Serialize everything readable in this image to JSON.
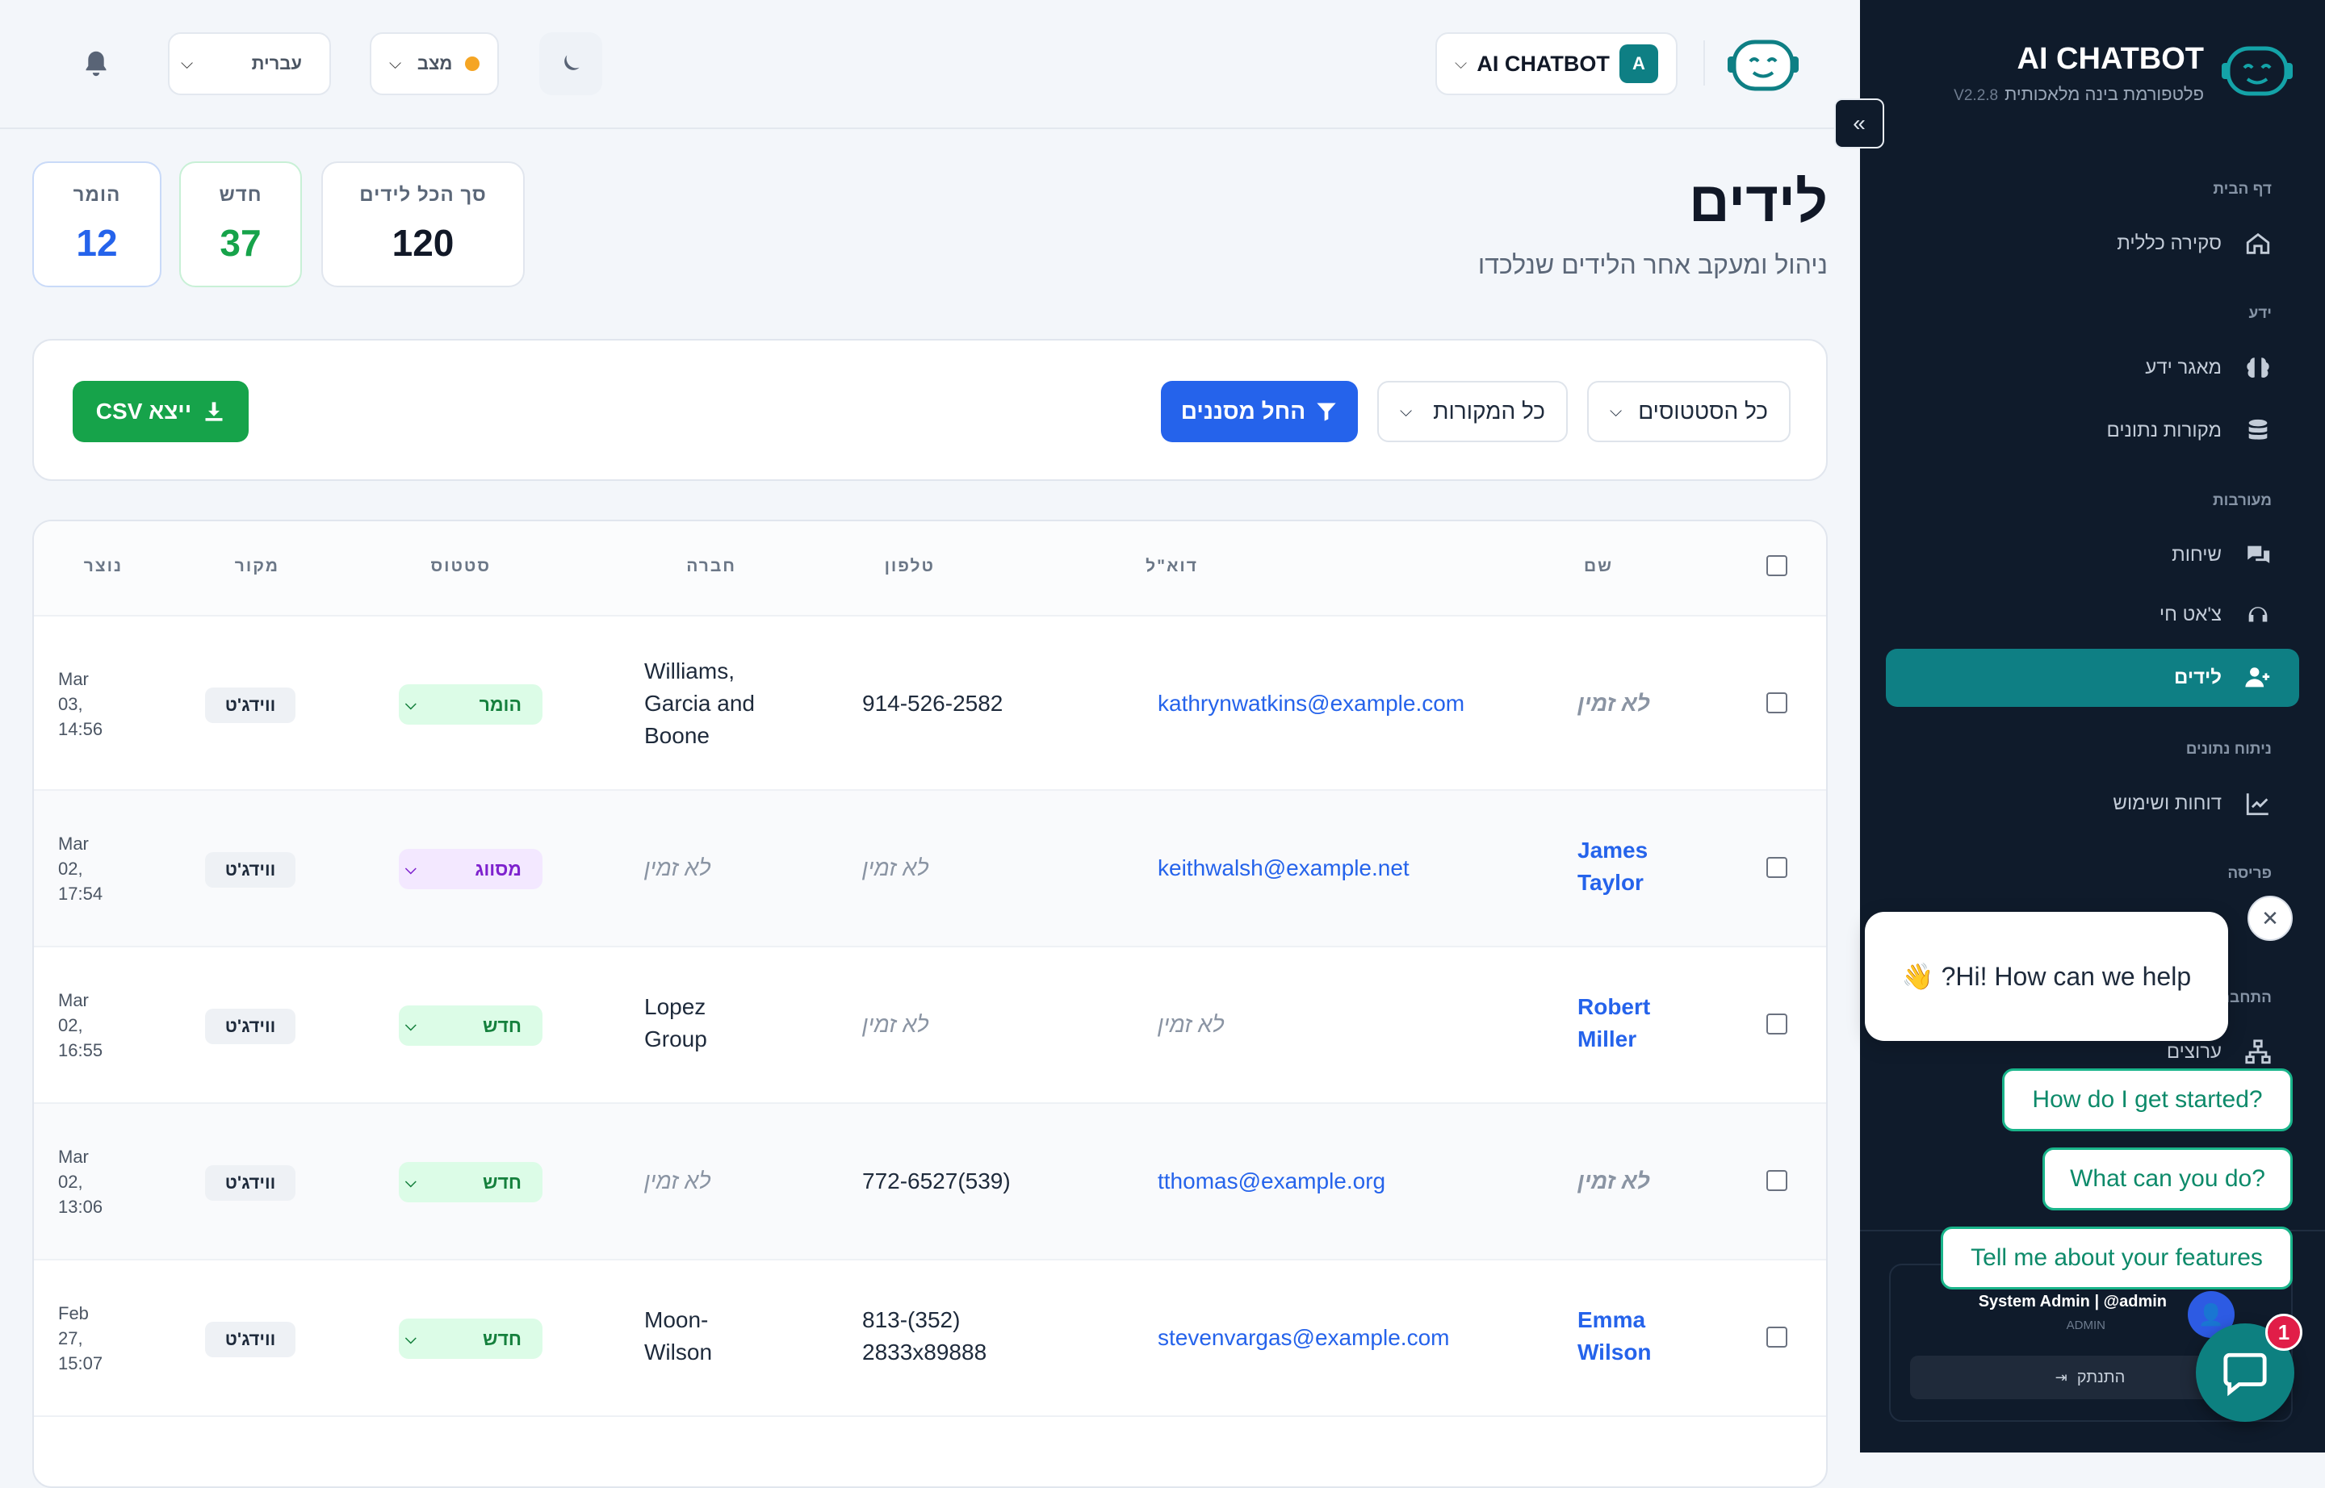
{
  "brand": {
    "title": "AI CHATBOT",
    "subtitle": "פלטפורמת בינה מלאכותית",
    "version": "V2.2.8"
  },
  "header": {
    "workspace_name": "AI CHATBOT",
    "workspace_avatar": "A",
    "status_label": "מצב",
    "status_color": "#f5a524",
    "language": "עברית"
  },
  "nav": {
    "sections": [
      {
        "label": "דף הבית"
      },
      {
        "label": "ידע"
      },
      {
        "label": "מעורבות"
      },
      {
        "label": "ניתוח נתונים"
      },
      {
        "label": "פריסה"
      },
      {
        "label": "התחבר"
      }
    ],
    "items": [
      {
        "label": "סקירה כללית",
        "icon": "home-icon"
      },
      {
        "label": "מאגר ידע",
        "icon": "brain-icon"
      },
      {
        "label": "מקורות נתונים",
        "icon": "database-icon"
      },
      {
        "label": "שיחות",
        "icon": "comments-icon"
      },
      {
        "label": "צ'אט חי",
        "icon": "headset-icon"
      },
      {
        "label": "לידים",
        "icon": "user-plus-icon",
        "active": true
      },
      {
        "label": "דוחות ושימוש",
        "icon": "chart-line-icon"
      },
      {
        "label": "ערוצים",
        "icon": "network-icon"
      }
    ]
  },
  "user": {
    "name": "System Admin | @admin",
    "role": "ADMIN",
    "logout": "התנתק"
  },
  "page": {
    "title": "לידים",
    "subtitle": "ניהול ומעקב אחר הלידים שנלכדו"
  },
  "stats": [
    {
      "label": "סך הכל לידים",
      "value": "120",
      "color": "#111827"
    },
    {
      "label": "חדש",
      "value": "37",
      "color": "#16a34a"
    },
    {
      "label": "הומר",
      "value": "12",
      "color": "#2563eb"
    }
  ],
  "filters": {
    "status": "כל הסטטוסים",
    "source": "כל המקורות",
    "apply": "החל מסננים",
    "export": "ייצא CSV"
  },
  "table": {
    "headers": {
      "name": "שם",
      "email": "דוא\"ל",
      "phone": "טלפון",
      "company": "חברה",
      "status": "סטטוס",
      "source": "מקור",
      "created": "נוצר"
    },
    "rows": [
      {
        "name": "לא זמין",
        "email": "kathrynwatkins@example.com",
        "phone": "914-526-2582",
        "company": "Williams, Garcia and Boone",
        "status": "הומר",
        "source": "ווידג'ט",
        "created": "Mar 03, 14:56"
      },
      {
        "name": "James Taylor",
        "email": "keithwalsh@example.net",
        "phone": "לא זמין",
        "company": "לא זמין",
        "status": "מסווג",
        "source": "ווידג'ט",
        "created": "Mar 02, 17:54"
      },
      {
        "name": "Robert Miller",
        "email": "לא זמין",
        "phone": "לא זמין",
        "company": "Lopez Group",
        "status": "חדש",
        "source": "ווידג'ט",
        "created": "Mar 02, 16:55"
      },
      {
        "name": "לא זמין",
        "email": "tthomas@example.org",
        "phone": "772-6527(539)",
        "company": "לא זמין",
        "status": "חדש",
        "source": "ווידג'ט",
        "created": "Mar 02, 13:06"
      },
      {
        "name": "Emma Wilson",
        "email": "stevenvargas@example.com",
        "phone": "813-(352) 2833x89888",
        "company": "Moon-Wilson",
        "status": "חדש",
        "source": "ווידג'ט",
        "created": "Feb 27, 15:07"
      }
    ]
  },
  "chat": {
    "greeting": "👋 ?Hi! How can we help",
    "quick_replies": [
      "How do I get started?",
      "What can you do?",
      "Tell me about your features"
    ],
    "unread": "1"
  },
  "colors": {
    "sidebar": "#0f1b2b",
    "accent": "#0e7f84",
    "primary": "#2563eb",
    "success": "#16a34a"
  }
}
